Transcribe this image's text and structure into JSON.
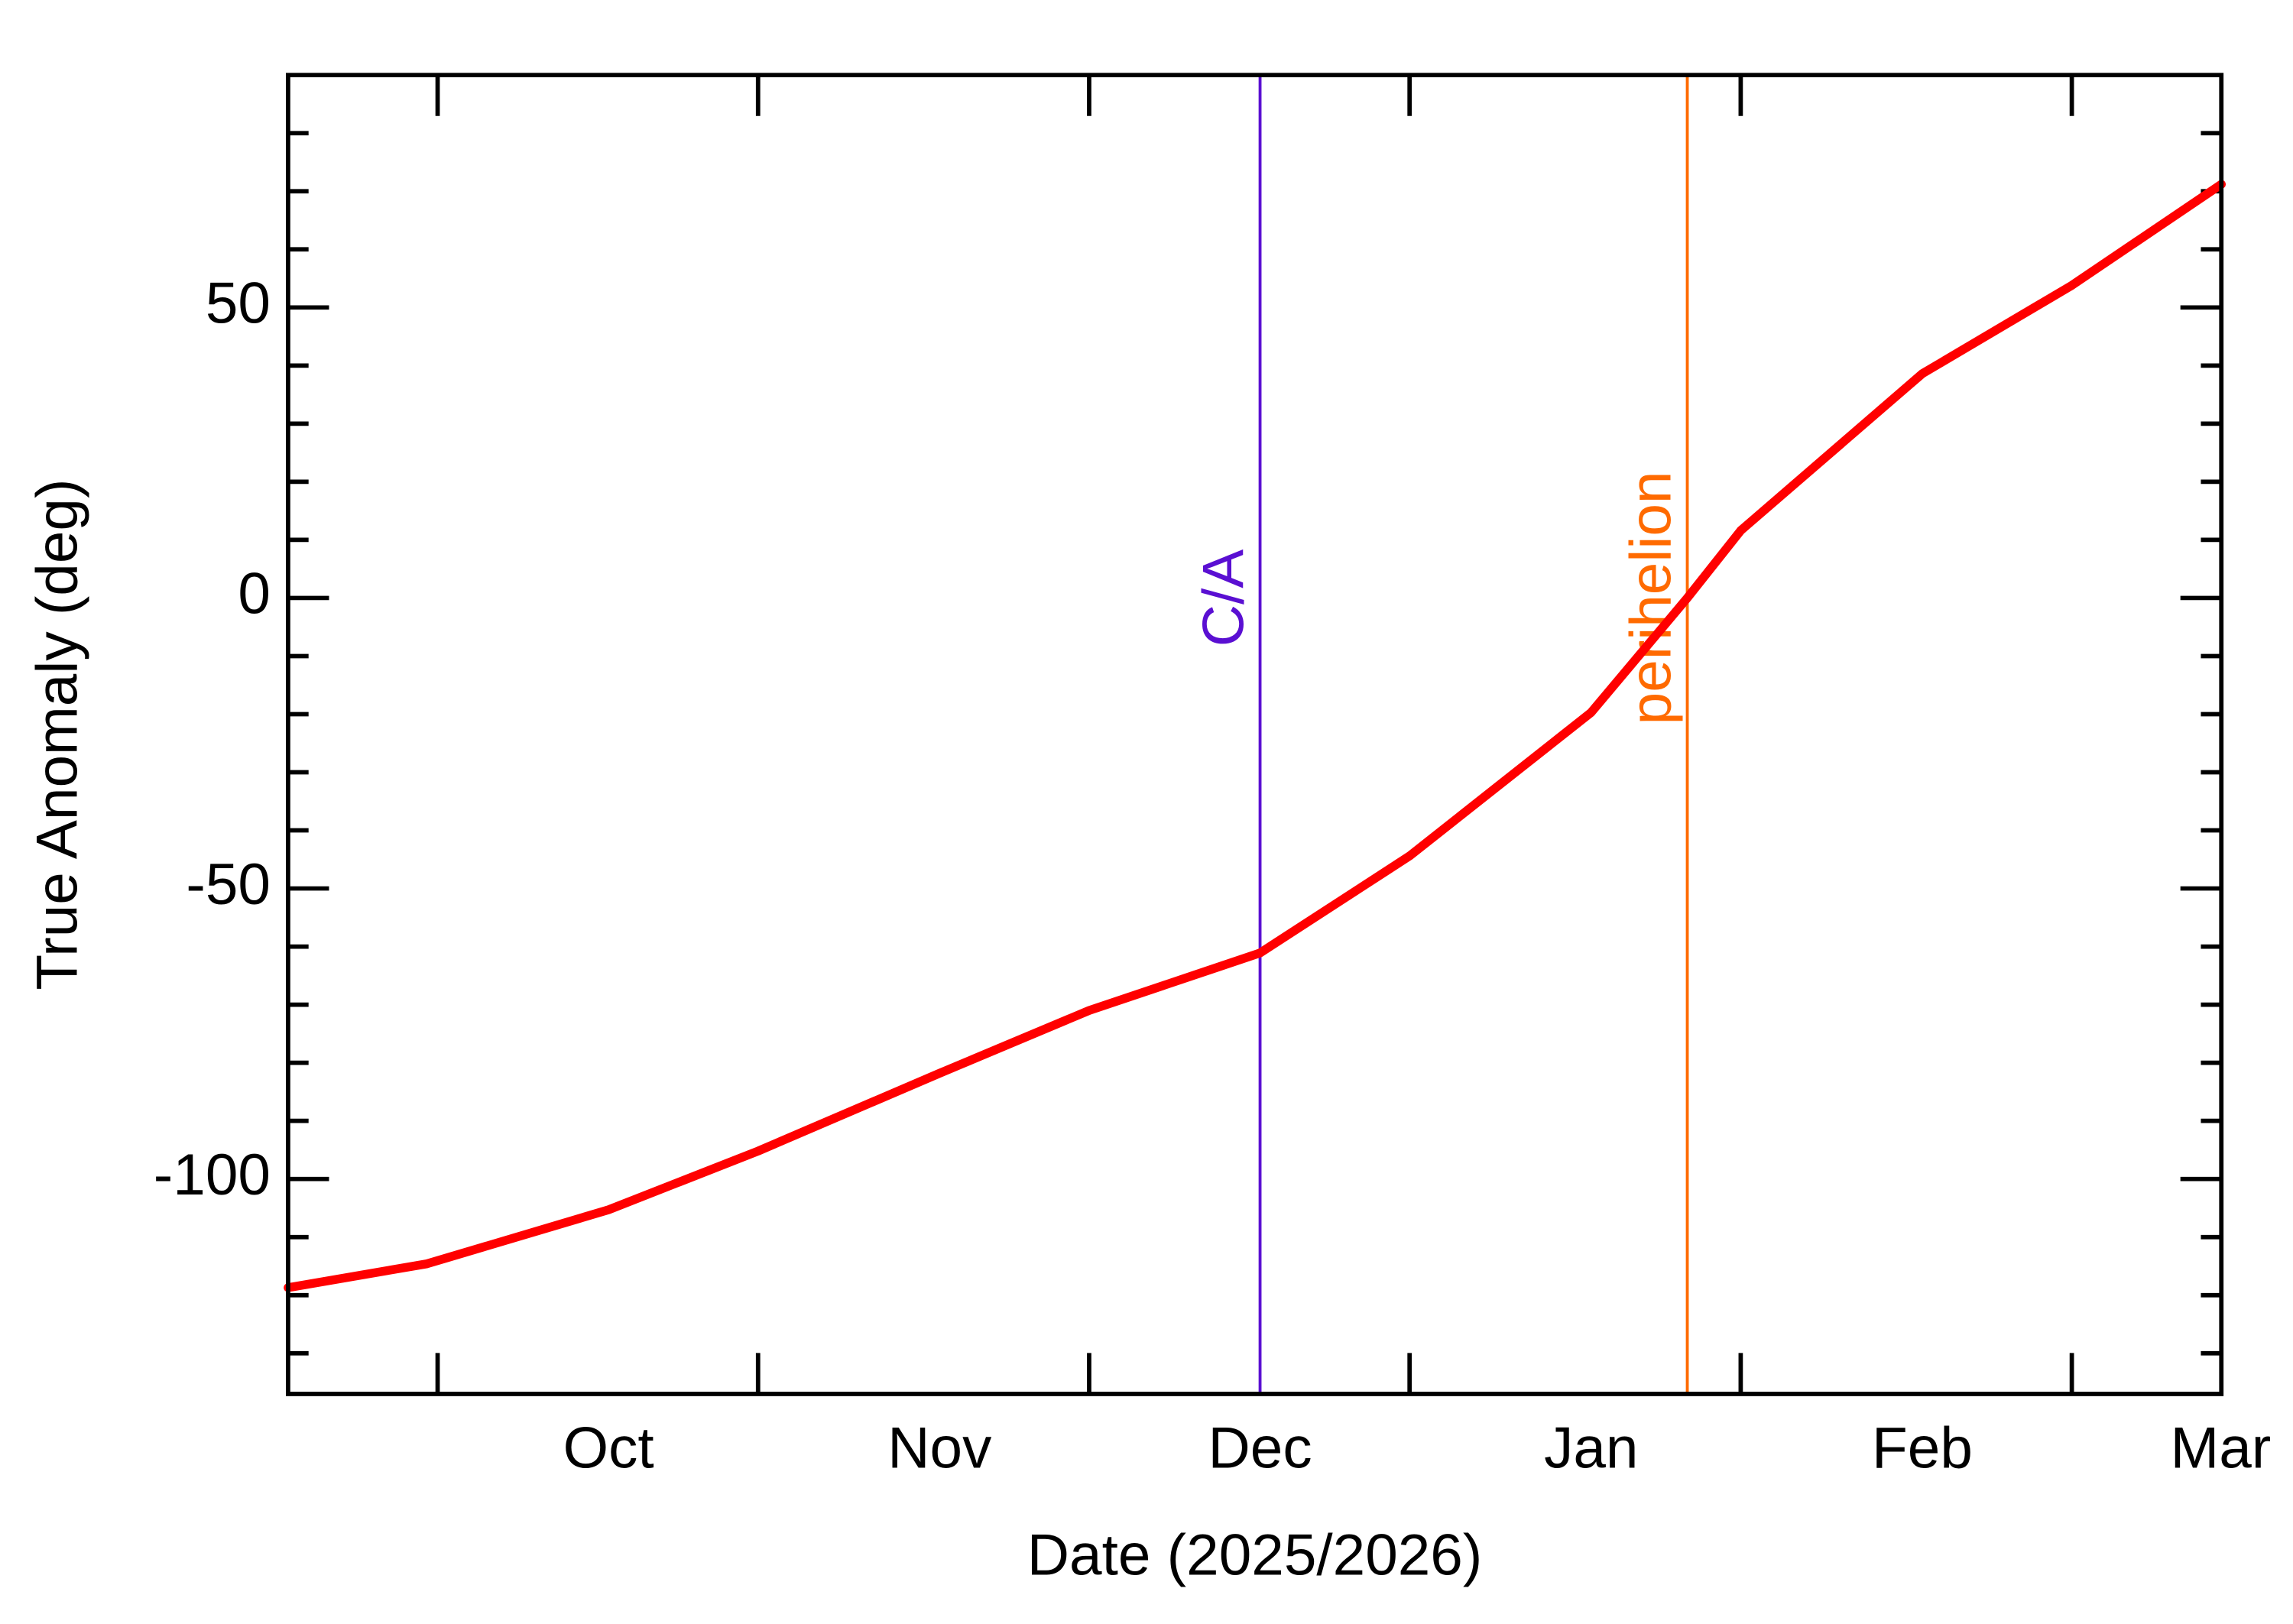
{
  "chart_data": {
    "type": "line",
    "xlabel": "Date (2025/2026)",
    "ylabel": "True Anomaly (deg)",
    "xlim": [
      "2025-09-01",
      "2026-03-01"
    ],
    "xticks": [
      {
        "value": "2025-10-01",
        "label": "Oct"
      },
      {
        "value": "2025-11-01",
        "label": "Nov"
      },
      {
        "value": "2025-12-01",
        "label": "Dec"
      },
      {
        "value": "2026-01-01",
        "label": "Jan"
      },
      {
        "value": "2026-02-01",
        "label": "Feb"
      },
      {
        "value": "2026-03-01",
        "label": "Mar"
      }
    ],
    "xminor_ticks": [
      "2025-09-15",
      "2025-10-15",
      "2025-11-15",
      "2025-12-15",
      "2026-01-15",
      "2026-02-15"
    ],
    "ylim": [
      -137,
      90
    ],
    "yticks": [
      -100,
      -50,
      0,
      50
    ],
    "yminor_ticks": [
      -130,
      -120,
      -110,
      -90,
      -80,
      -70,
      -60,
      -40,
      -30,
      -20,
      -10,
      10,
      20,
      30,
      40,
      60,
      70,
      80
    ],
    "series": [
      {
        "color": "#ff0000",
        "x": [
          "2025-09-01",
          "2025-09-14",
          "2025-10-01",
          "2025-10-15",
          "2025-11-01",
          "2025-11-15",
          "2025-12-01",
          "2025-12-15",
          "2026-01-01",
          "2026-01-10",
          "2026-01-15",
          "2026-02-01",
          "2026-02-15",
          "2026-03-01"
        ],
        "values": [
          -118.7,
          -114.6,
          -105.3,
          -95.2,
          -81.8,
          -71,
          -61.1,
          -44.4,
          -19.7,
          0,
          11.6,
          38.6,
          53.8,
          71.2
        ]
      }
    ],
    "markers": [
      {
        "label": "C/A",
        "x": "2025-12-01",
        "color": "#5a0fd2"
      },
      {
        "label": "perihelion",
        "x": "2026-01-10",
        "color": "#ff6a00"
      }
    ]
  }
}
